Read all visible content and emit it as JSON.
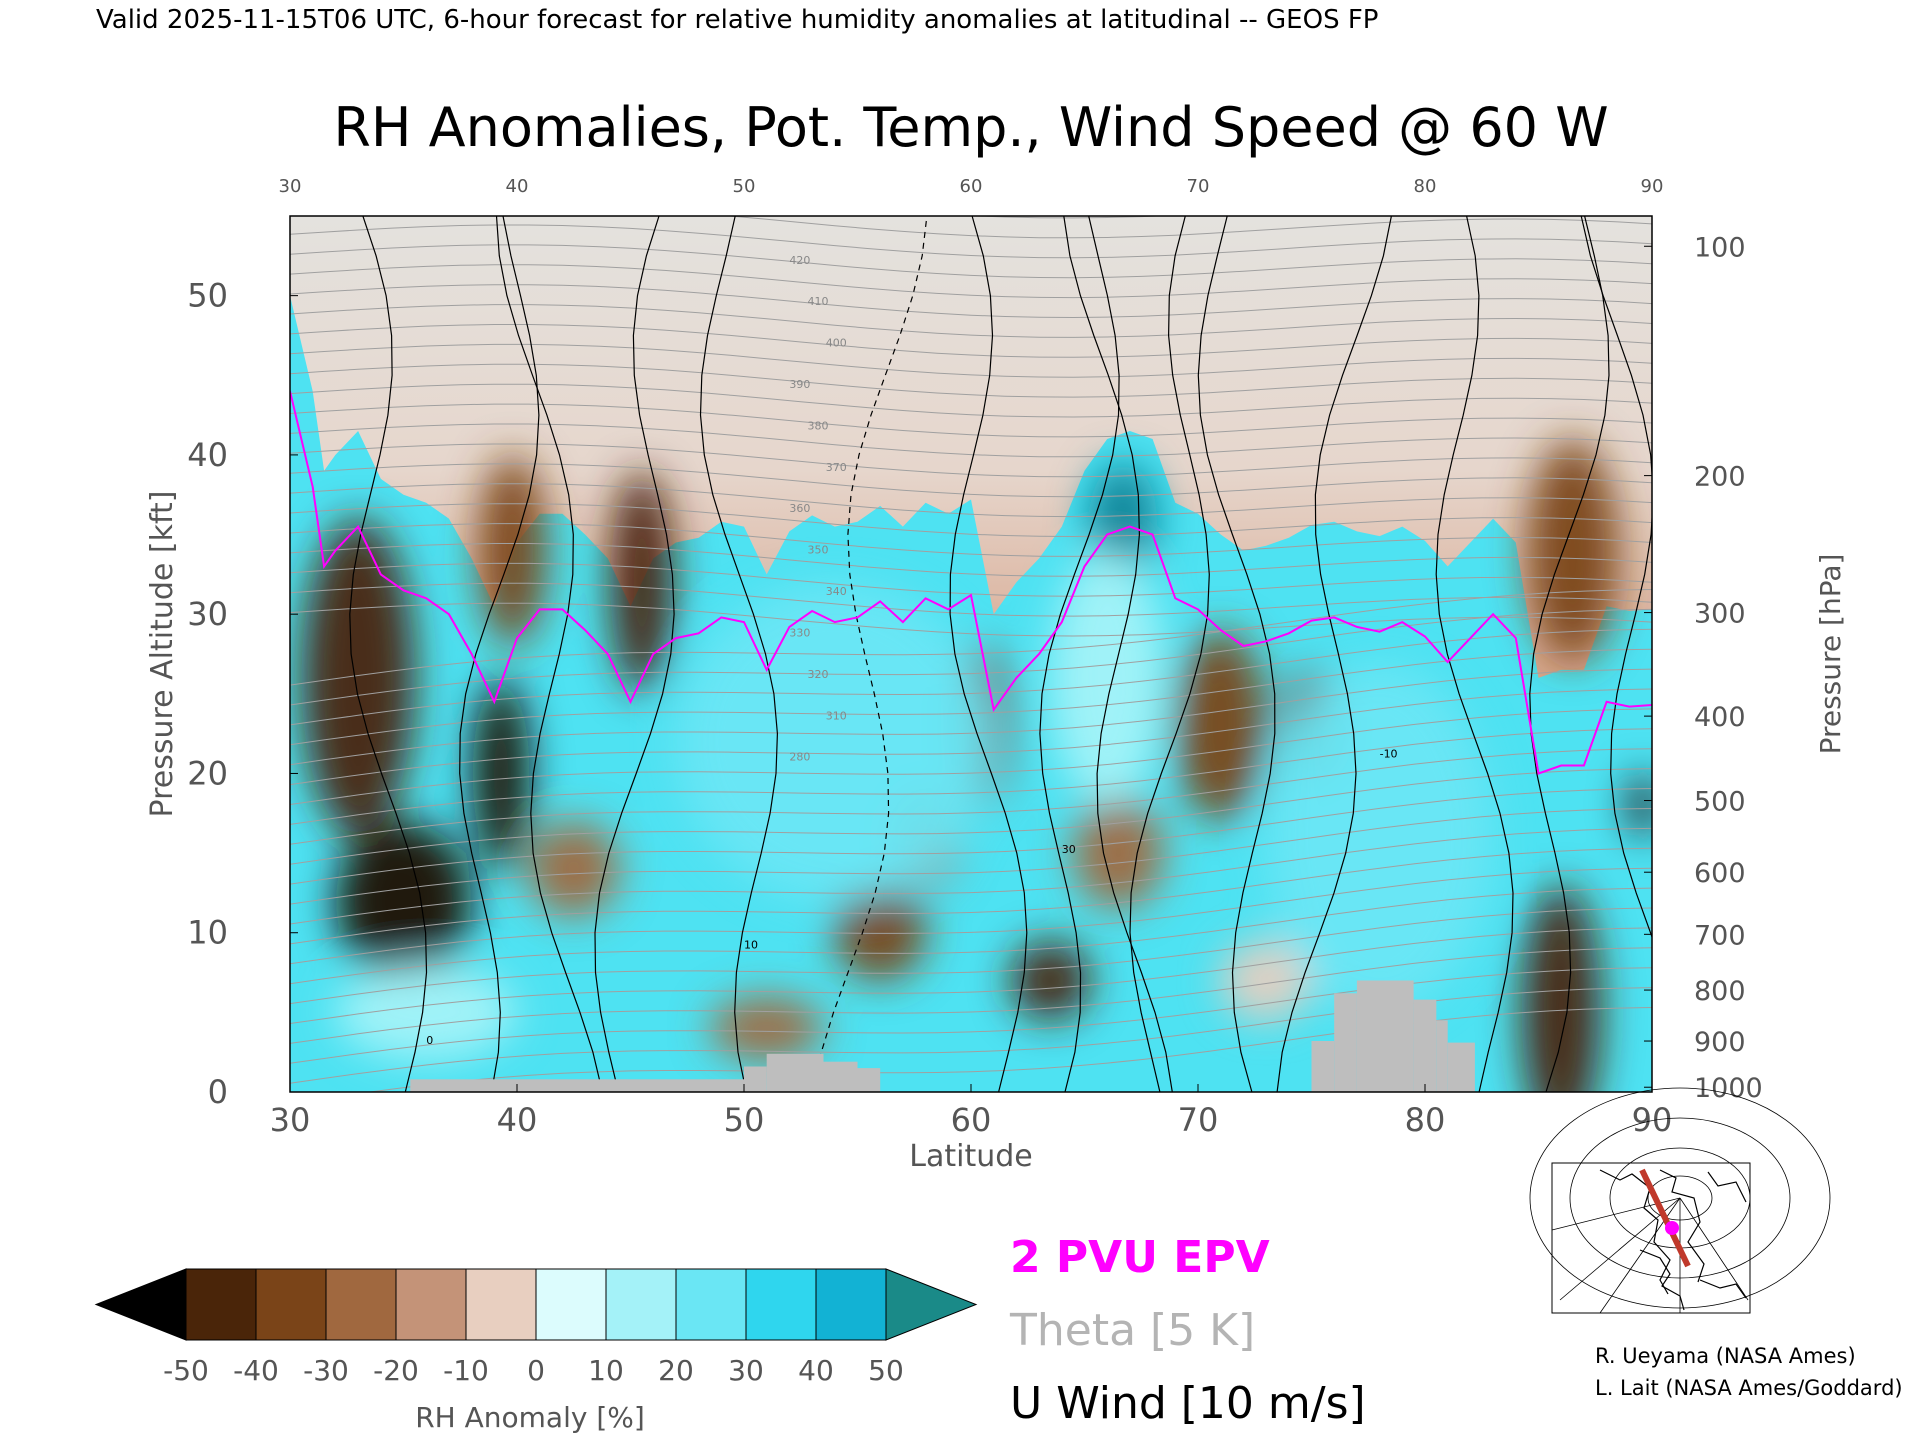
{
  "header": "Valid 2025-11-15T06 UTC, 6-hour forecast for relative humidity anomalies at latitudinal -- GEOS FP",
  "chart_data": {
    "type": "heatmap",
    "title": "RH Anomalies, Pot. Temp., Wind Speed @ 60 W",
    "xlabel": "Latitude",
    "ylabel": "Pressure Altitude [kft]",
    "y2label": "Pressure [hPa]",
    "xlim": [
      30,
      90
    ],
    "ylim": [
      0,
      55
    ],
    "x_ticks": [
      "30",
      "40",
      "50",
      "60",
      "70",
      "80",
      "90"
    ],
    "x_ticks_top": [
      "30",
      "40",
      "50",
      "60",
      "70",
      "80",
      "90"
    ],
    "y_ticks": [
      "0",
      "10",
      "20",
      "30",
      "40",
      "50"
    ],
    "pressure_ticks": [
      {
        "label": "100",
        "kft": 53.1
      },
      {
        "label": "200",
        "kft": 38.7
      },
      {
        "label": "300",
        "kft": 30.1
      },
      {
        "label": "400",
        "kft": 23.6
      },
      {
        "label": "500",
        "kft": 18.3
      },
      {
        "label": "600",
        "kft": 13.8
      },
      {
        "label": "700",
        "kft": 9.9
      },
      {
        "label": "800",
        "kft": 6.4
      },
      {
        "label": "900",
        "kft": 3.2
      },
      {
        "label": "1000",
        "kft": 0.3
      }
    ],
    "colorbar": {
      "label": "RH Anomaly [%]",
      "ticks": [
        "-50",
        "-40",
        "-30",
        "-20",
        "-10",
        "0",
        "10",
        "20",
        "30",
        "40",
        "50"
      ],
      "colors": [
        "#1a0d05",
        "#4a2509",
        "#7a4418",
        "#a0683f",
        "#c49378",
        "#e8cfc0",
        "#dcfcfd",
        "#a4f2f8",
        "#6ae6f4",
        "#2fd6ee",
        "#12b2d4",
        "#0a7f94"
      ],
      "under_color": "#000000",
      "over_color": "#1a8a88"
    },
    "legend": [
      {
        "label": "2 PVU EPV",
        "color": "#ff00ff"
      },
      {
        "label": "Theta [5 K]",
        "color": "#b4b4b4"
      },
      {
        "label": "U Wind [10 m/s]",
        "color": "#000000"
      }
    ],
    "theta_labels": [
      "420",
      "410",
      "400",
      "390",
      "380",
      "370",
      "360",
      "350",
      "340",
      "330",
      "320",
      "310",
      "280"
    ],
    "wind_labels": [
      "0",
      "10",
      "30",
      "-10"
    ],
    "epv_2pvu": {
      "lat": [
        30,
        31,
        31.5,
        32,
        33,
        34,
        35,
        36,
        37,
        38,
        39,
        40,
        41,
        42,
        43,
        44,
        45,
        46,
        47,
        48,
        49,
        50,
        51,
        52,
        53,
        54,
        55,
        56,
        57,
        58,
        59,
        60,
        61,
        62,
        63,
        64,
        65,
        66,
        67,
        68,
        69,
        70,
        71,
        72,
        73,
        74,
        75,
        76,
        77,
        78,
        79,
        80,
        81,
        82,
        83,
        84,
        85,
        86,
        87,
        88,
        89,
        90
      ],
      "kft": [
        44,
        38,
        33,
        34,
        35.5,
        32.5,
        31.5,
        31,
        30,
        27.5,
        24.5,
        28.5,
        30.3,
        30.3,
        29,
        27.5,
        24.5,
        27.5,
        28.5,
        28.8,
        29.8,
        29.5,
        26.5,
        29.2,
        30.2,
        29.5,
        29.8,
        30.8,
        29.5,
        31,
        30.3,
        31.2,
        24,
        26,
        27.5,
        29.5,
        33,
        35,
        35.5,
        35,
        31,
        30.3,
        29,
        28,
        28.3,
        28.8,
        29.6,
        29.8,
        29.2,
        28.9,
        29.5,
        28.6,
        27,
        28.5,
        30,
        28.5,
        20,
        20.5,
        20.5,
        24.5,
        24.2,
        24.3
      ]
    },
    "terrain": [
      {
        "lat": [
          35.3,
          50.0
        ],
        "kft": 0.8
      },
      {
        "lat": [
          50.0,
          51.0
        ],
        "kft": 1.6
      },
      {
        "lat": [
          51.0,
          53.5
        ],
        "kft": 2.4
      },
      {
        "lat": [
          53.5,
          55.0
        ],
        "kft": 1.9
      },
      {
        "lat": [
          55.0,
          56.0
        ],
        "kft": 1.5
      },
      {
        "lat": [
          75.0,
          76.0
        ],
        "kft": 3.2
      },
      {
        "lat": [
          76.0,
          77.0
        ],
        "kft": 6.2
      },
      {
        "lat": [
          77.0,
          79.5
        ],
        "kft": 7.0
      },
      {
        "lat": [
          79.5,
          80.5
        ],
        "kft": 5.8
      },
      {
        "lat": [
          80.5,
          81.0
        ],
        "kft": 4.5
      },
      {
        "lat": [
          81.0,
          82.2
        ],
        "kft": 3.1
      }
    ],
    "rh_anomaly_features": [
      {
        "lat": 33,
        "kft": 26,
        "w": 5,
        "h": 20,
        "v": -48
      },
      {
        "lat": 35,
        "kft": 12,
        "w": 6,
        "h": 10,
        "v": -55
      },
      {
        "lat": 39.3,
        "kft": 20,
        "w": 2.5,
        "h": 12,
        "v": -52
      },
      {
        "lat": 39.8,
        "kft": 34,
        "w": 3,
        "h": 12,
        "v": -35
      },
      {
        "lat": 45.5,
        "kft": 32,
        "w": 2.8,
        "h": 14,
        "v": -42
      },
      {
        "lat": 42.5,
        "kft": 14,
        "w": 4,
        "h": 6,
        "v": -25
      },
      {
        "lat": 51,
        "kft": 4,
        "w": 5,
        "h": 4,
        "v": -30
      },
      {
        "lat": 56,
        "kft": 10,
        "w": 4,
        "h": 6,
        "v": -35
      },
      {
        "lat": 60.5,
        "kft": 23,
        "w": 2.5,
        "h": 10,
        "v": -38
      },
      {
        "lat": 58,
        "kft": 16,
        "w": 3,
        "h": 6,
        "v": -30
      },
      {
        "lat": 63.5,
        "kft": 7,
        "w": 3.5,
        "h": 5,
        "v": -45
      },
      {
        "lat": 66.5,
        "kft": 15,
        "w": 4,
        "h": 7,
        "v": -30
      },
      {
        "lat": 71,
        "kft": 23,
        "w": 4,
        "h": 12,
        "v": -38
      },
      {
        "lat": 75,
        "kft": 23,
        "w": 2.5,
        "h": 7,
        "v": -32
      },
      {
        "lat": 73,
        "kft": 7,
        "w": 4,
        "h": 5,
        "v": -10
      },
      {
        "lat": 86,
        "kft": 5,
        "w": 3.5,
        "h": 16,
        "v": -45
      },
      {
        "lat": 86.5,
        "kft": 34,
        "w": 4,
        "h": 14,
        "v": -35
      },
      {
        "lat": 89.6,
        "kft": 18,
        "w": 1.2,
        "h": 4,
        "v": -55
      },
      {
        "lat": 66.7,
        "kft": 36,
        "w": 3,
        "h": 7,
        "v": 55
      },
      {
        "lat": 54,
        "kft": 22,
        "w": 14,
        "h": 20,
        "v": 22
      },
      {
        "lat": 78,
        "kft": 16,
        "w": 10,
        "h": 22,
        "v": 20
      },
      {
        "lat": 66,
        "kft": 26,
        "w": 5,
        "h": 16,
        "v": 18
      },
      {
        "lat": 36,
        "kft": 5,
        "w": 8,
        "h": 6,
        "v": 18
      }
    ]
  },
  "credits": [
    "R. Ueyama (NASA Ames)",
    "L. Lait (NASA Ames/Goddard)"
  ]
}
